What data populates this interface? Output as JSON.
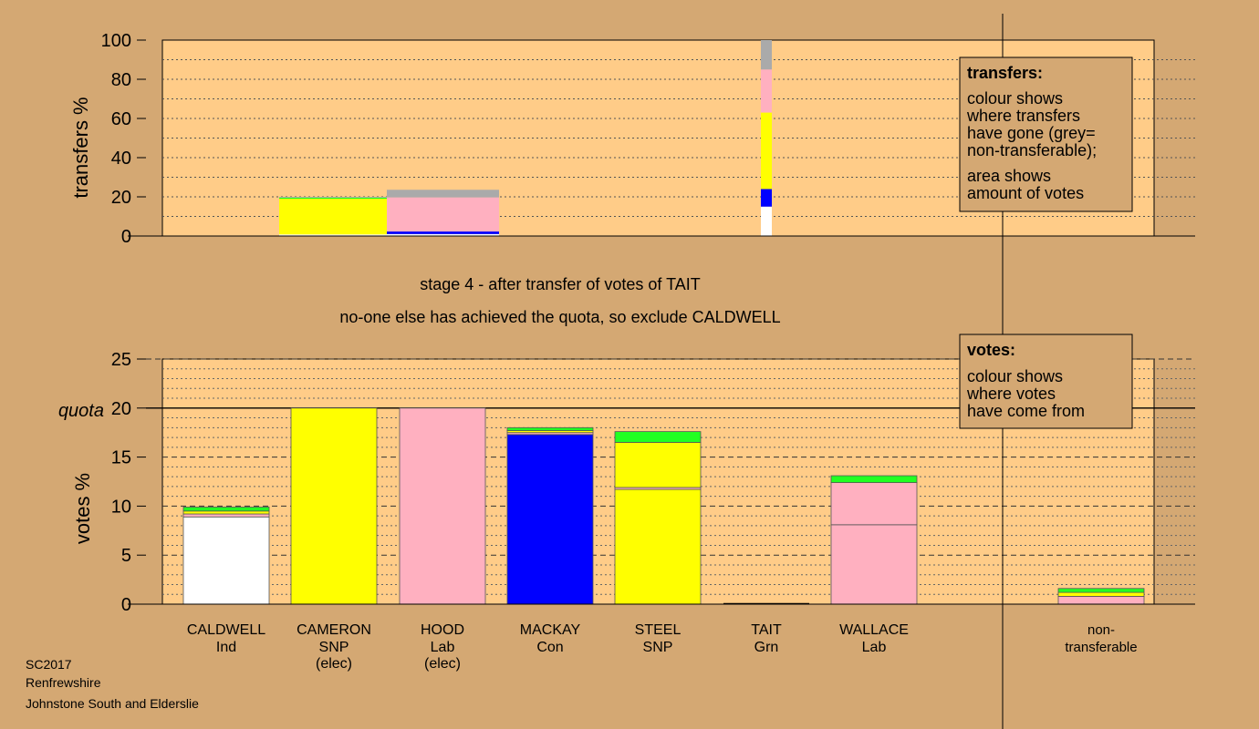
{
  "colors": {
    "background": "#d4a873",
    "plot_bg": "#ffcc88",
    "Ind": "#ffffff",
    "SNP": "#ffff00",
    "Lab": "#ffb0c0",
    "Con": "#0000ff",
    "Grn": "#22ff22",
    "nontransferable": "#aaaaaa"
  },
  "captions": {
    "stage": "stage 4 - after transfer of votes of TAIT",
    "action": "no-one else has achieved the quota, so exclude CALDWELL"
  },
  "footer": {
    "line1": "SC2017",
    "line2": "Renfrewshire",
    "line3": "Johnstone South and Elderslie"
  },
  "legend_transfers": {
    "title": "transfers:",
    "lines": [
      "colour shows",
      "where transfers",
      "have gone (grey=",
      "non-transferable);",
      "area shows",
      "amount of votes"
    ]
  },
  "legend_votes": {
    "title": "votes:",
    "lines": [
      "colour shows",
      "where votes",
      "have come from"
    ]
  },
  "chart_data": [
    {
      "type": "bar",
      "id": "transfers",
      "ylabel": "transfers %",
      "ylim": [
        0,
        100
      ],
      "yticks": [
        0,
        20,
        40,
        60,
        80,
        100
      ],
      "grid": true,
      "bars": [
        {
          "candidate": "CAMERON",
          "segments": [
            {
              "party": "Ind",
              "value": 0.8
            },
            {
              "party": "SNP",
              "value": 18.2
            },
            {
              "party": "Grn",
              "value": 0.6
            },
            {
              "party": "nontransferable",
              "value": 0.4
            }
          ]
        },
        {
          "candidate": "HOOD",
          "segments": [
            {
              "party": "Ind",
              "value": 1.0
            },
            {
              "party": "Con",
              "value": 1.3
            },
            {
              "party": "Lab",
              "value": 17.4
            },
            {
              "party": "nontransferable",
              "value": 3.9
            }
          ]
        },
        {
          "candidate": "TAIT",
          "segments": [
            {
              "party": "Ind",
              "value": 15
            },
            {
              "party": "Con",
              "value": 9
            },
            {
              "party": "SNP",
              "value": 39
            },
            {
              "party": "Lab",
              "value": 22
            },
            {
              "party": "nontransferable",
              "value": 15
            }
          ]
        }
      ]
    },
    {
      "type": "bar",
      "id": "votes",
      "ylabel": "votes %",
      "ylim": [
        0,
        25
      ],
      "yticks": [
        0,
        5,
        10,
        15,
        20,
        25
      ],
      "quota": 20,
      "quota_label": "quota",
      "grid": true,
      "categories": [
        {
          "name": "CALDWELL",
          "party": "Ind",
          "note": ""
        },
        {
          "name": "CAMERON",
          "party": "SNP",
          "note": "(elec)"
        },
        {
          "name": "HOOD",
          "party": "Lab",
          "note": "(elec)"
        },
        {
          "name": "MACKAY",
          "party": "Con",
          "note": ""
        },
        {
          "name": "STEEL",
          "party": "SNP",
          "note": ""
        },
        {
          "name": "TAIT",
          "party": "Grn",
          "note": ""
        },
        {
          "name": "WALLACE",
          "party": "Lab",
          "note": ""
        },
        {
          "name": "non-",
          "party": "transferable",
          "note": ""
        }
      ],
      "bars": [
        [
          {
            "party": "Ind",
            "value": 8.9
          },
          {
            "party": "Lab",
            "value": 0.3
          },
          {
            "party": "SNP",
            "value": 0.3
          },
          {
            "party": "Grn",
            "value": 0.4
          }
        ],
        [
          {
            "party": "SNP",
            "value": 20
          }
        ],
        [
          {
            "party": "Lab",
            "value": 20
          }
        ],
        [
          {
            "party": "Con",
            "value": 17.3
          },
          {
            "party": "Lab",
            "value": 0.2
          },
          {
            "party": "SNP",
            "value": 0.2
          },
          {
            "party": "Grn",
            "value": 0.3
          }
        ],
        [
          {
            "party": "SNP",
            "value": 11.7
          },
          {
            "party": "Lab",
            "value": 0.2
          },
          {
            "party": "SNP",
            "value": 4.6
          },
          {
            "party": "Grn",
            "value": 1.1
          }
        ],
        [],
        [
          {
            "party": "Lab",
            "value": 8.1
          },
          {
            "party": "Lab",
            "value": 4.3
          },
          {
            "party": "Grn",
            "value": 0.7
          }
        ],
        [
          {
            "party": "Lab",
            "value": 0.8
          },
          {
            "party": "SNP",
            "value": 0.4
          },
          {
            "party": "Grn",
            "value": 0.4
          }
        ]
      ]
    }
  ]
}
